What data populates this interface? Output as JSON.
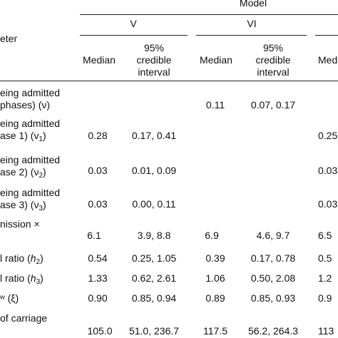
{
  "header": {
    "model_label": "Model",
    "param_label": "eter",
    "col_v": "V",
    "col_vi": "VI",
    "median": "Median",
    "ci_line1": "95%",
    "ci_line2": "credible",
    "ci_line3": "interval",
    "median_partial": "Med"
  },
  "rows": [
    {
      "label_l1": "eing admitted",
      "label_l2": " phases) (ν)",
      "v_median": "",
      "v_ci": "",
      "vi_median": "0.11",
      "vi_ci": "0.07, 0.17",
      "next_partial": ""
    },
    {
      "label_l1": "eing admitted",
      "label_l2_pre": "ase 1) (ν",
      "label_l2_sub": "1",
      "label_l2_post": ")",
      "v_median": "0.28",
      "v_ci": "0.17, 0.41",
      "vi_median": "",
      "vi_ci": "",
      "next_partial": "0.25"
    },
    {
      "label_l1": "eing admitted",
      "label_l2_pre": "ase 2) (ν",
      "label_l2_sub": "2",
      "label_l2_post": ")",
      "v_median": "0.03",
      "v_ci": "0.01, 0.09",
      "vi_median": "",
      "vi_ci": "",
      "next_partial": "0.03"
    },
    {
      "label_l1": "eing admitted",
      "label_l2_pre": "ase 3) (ν",
      "label_l2_sub": "3",
      "label_l2_post": ")",
      "v_median": "0.03",
      "v_ci": "0.00, 0.11",
      "vi_median": "",
      "vi_ci": "",
      "next_partial": "0.03"
    },
    {
      "label_l1": "nission ×",
      "label_l2": "",
      "v_median": "6.1",
      "v_ci": "3.9, 8.8",
      "vi_median": "6.9",
      "vi_ci": "4.6, 9.7",
      "next_partial": "6.5"
    },
    {
      "label_pre": "l ratio (",
      "label_var": "h",
      "label_sub": "2",
      "label_post": ")",
      "v_median": "0.54",
      "v_ci": "0.25, 1.05",
      "vi_median": "0.39",
      "vi_ci": "0.17, 0.78",
      "next_partial": "0.5"
    },
    {
      "label_pre": "l ratio (",
      "label_var": "h",
      "label_sub": "3",
      "label_post": ")",
      "v_median": "1.33",
      "v_ci": "0.62, 2.61",
      "vi_median": "1.06",
      "vi_ci": "0.50, 2.08",
      "next_partial": "1.2"
    },
    {
      "label": "ʷ (ξ)",
      "v_median": "0.90",
      "v_ci": "0.85, 0.94",
      "vi_median": "0.89",
      "vi_ci": "0.85, 0.93",
      "next_partial": "0.9"
    },
    {
      "label_l1": "of carriage",
      "v_median": "105.0",
      "v_ci": "51.0, 236.7",
      "vi_median": "117.5",
      "vi_ci": "56.2, 264.3",
      "next_partial": "113"
    }
  ]
}
